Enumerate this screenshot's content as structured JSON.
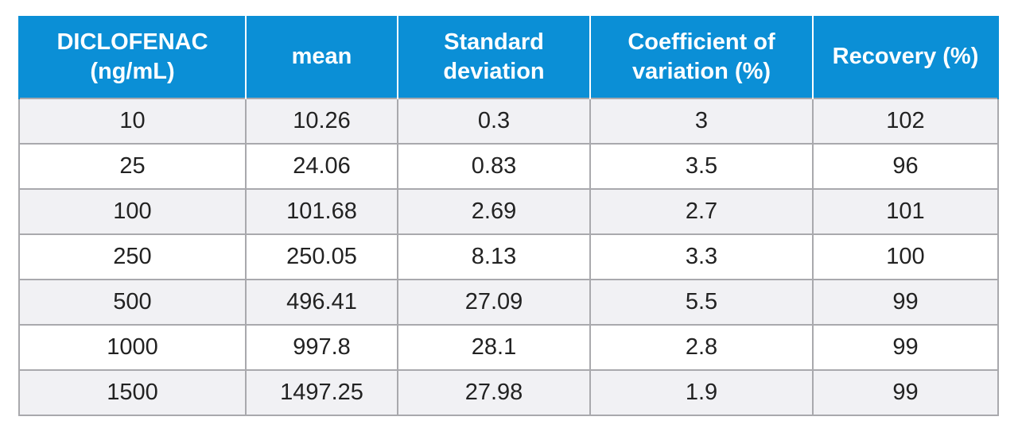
{
  "table": {
    "headers": [
      "DICLOFENAC (ng/mL)",
      "mean",
      "Standard deviation",
      "Coefficient of variation (%)",
      "Recovery (%)"
    ],
    "rows": [
      [
        "10",
        "10.26",
        "0.3",
        "3",
        "102"
      ],
      [
        "25",
        "24.06",
        "0.83",
        "3.5",
        "96"
      ],
      [
        "100",
        "101.68",
        "2.69",
        "2.7",
        "101"
      ],
      [
        "250",
        "250.05",
        "8.13",
        "3.3",
        "100"
      ],
      [
        "500",
        "496.41",
        "27.09",
        "5.5",
        "99"
      ],
      [
        "1000",
        "997.8",
        "28.1",
        "2.8",
        "99"
      ],
      [
        "1500",
        "1497.25",
        "27.98",
        "1.9",
        "99"
      ]
    ],
    "colors": {
      "header_bg": "#0b8fd6",
      "header_text": "#ffffff",
      "row_alt_bg": "#f1f1f4",
      "row_bg": "#ffffff",
      "grid": "#a9a9ad"
    }
  }
}
